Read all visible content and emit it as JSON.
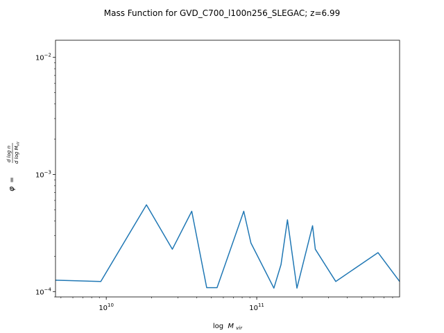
{
  "chart_data": {
    "type": "line",
    "title": "Mass Function for GVD_C700_l100n256_SLEGAC; z=6.99",
    "xscale": "log",
    "yscale": "log",
    "xlim": [
      4600000000.0,
      890000000000.0
    ],
    "ylim": [
      9e-05,
      0.014
    ],
    "x_ticks": [
      {
        "value": 10000000000.0,
        "base": "10",
        "exp": "10"
      },
      {
        "value": 100000000000.0,
        "base": "10",
        "exp": "11"
      }
    ],
    "y_ticks": [
      {
        "value": 0.0001,
        "base": "10",
        "exp": "−4"
      },
      {
        "value": 0.001,
        "base": "10",
        "exp": "−3"
      },
      {
        "value": 0.01,
        "base": "10",
        "exp": "−2"
      }
    ],
    "grid": false,
    "line_color": "#1f77b4",
    "series": [
      {
        "x": [
          4600000000.0,
          9200000000.0,
          18500000000.0,
          27500000000.0,
          37000000000.0,
          46500000000.0,
          54500000000.0,
          82000000000.0,
          91500000000.0,
          130000000000.0,
          145000000000.0,
          160000000000.0,
          185000000000.0,
          235000000000.0,
          245000000000.0,
          335000000000.0,
          640000000000.0,
          890000000000.0
        ],
        "y": [
          0.000125,
          0.000122,
          0.00055,
          0.00023,
          0.000485,
          0.000108,
          0.000108,
          0.000485,
          0.00026,
          0.000107,
          0.00017,
          0.00041,
          0.000107,
          0.000365,
          0.00023,
          0.000122,
          0.000215,
          0.000122
        ]
      }
    ],
    "xlabel": {
      "main": "log",
      "var": "M",
      "sub": "vir"
    },
    "ylabel": {
      "phi": "φ",
      "eq": "=",
      "num": "d log n",
      "den_pre": "d log ",
      "den_var": "M",
      "den_sub": "vir"
    }
  }
}
